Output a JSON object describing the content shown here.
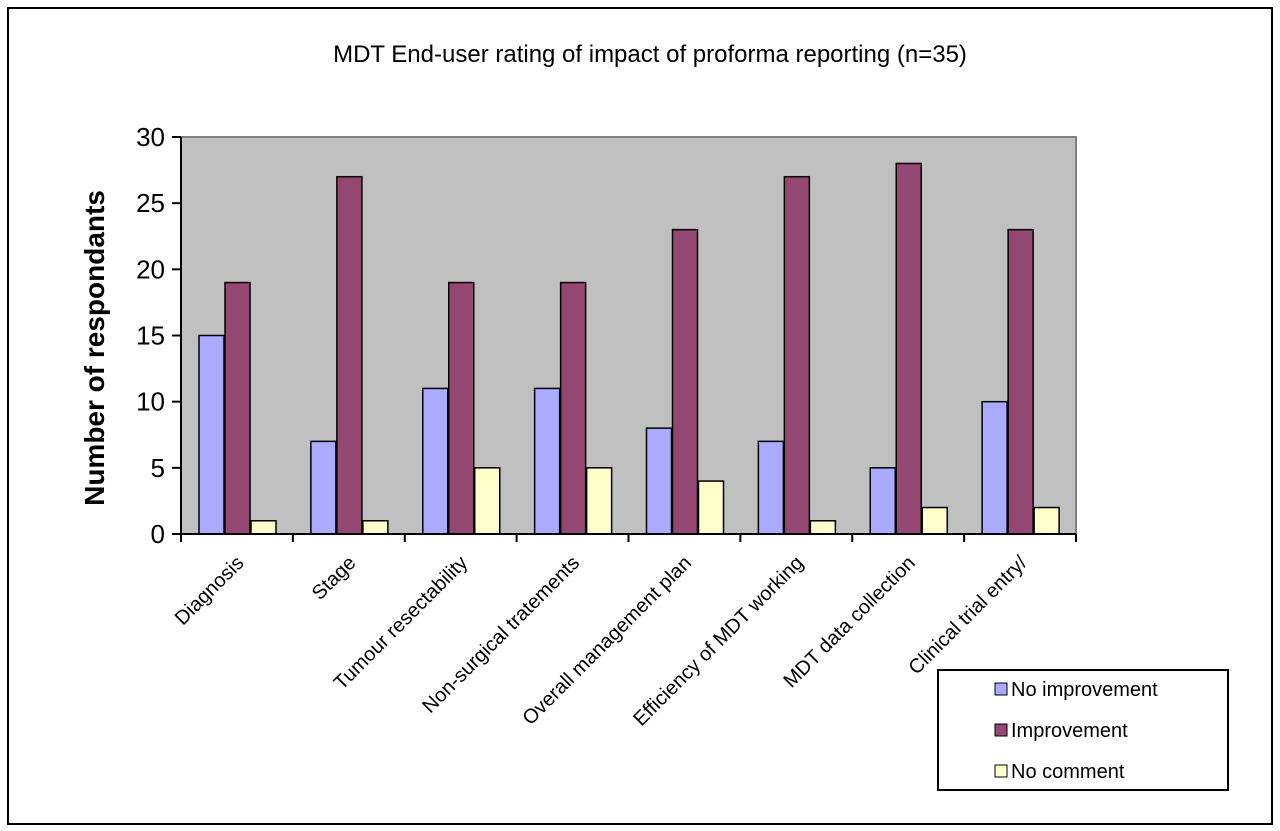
{
  "chart_data": {
    "type": "bar",
    "title": "MDT End-user rating of impact of proforma reporting  (n=35)",
    "xlabel": "",
    "ylabel": "Number of respondants",
    "ylim": [
      0,
      30
    ],
    "yticks": [
      0,
      5,
      10,
      15,
      20,
      25,
      30
    ],
    "grid": false,
    "legend_position": "bottom-right",
    "categories": [
      "Diagnosis",
      "Stage",
      "Tumour resectability",
      "Non-surgical tratements",
      "Overall management plan",
      "Efficiency of MDT working",
      "MDT data collection",
      "Clinical trial entry/"
    ],
    "series": [
      {
        "name": "No improvement",
        "color": "#aaaaff",
        "values": [
          15,
          7,
          11,
          11,
          8,
          7,
          5,
          10
        ]
      },
      {
        "name": "Improvement",
        "color": "#944773",
        "values": [
          19,
          27,
          19,
          19,
          23,
          27,
          28,
          23
        ]
      },
      {
        "name": "No comment",
        "color": "#ffffcc",
        "values": [
          1,
          1,
          5,
          5,
          4,
          1,
          2,
          2
        ]
      }
    ]
  }
}
